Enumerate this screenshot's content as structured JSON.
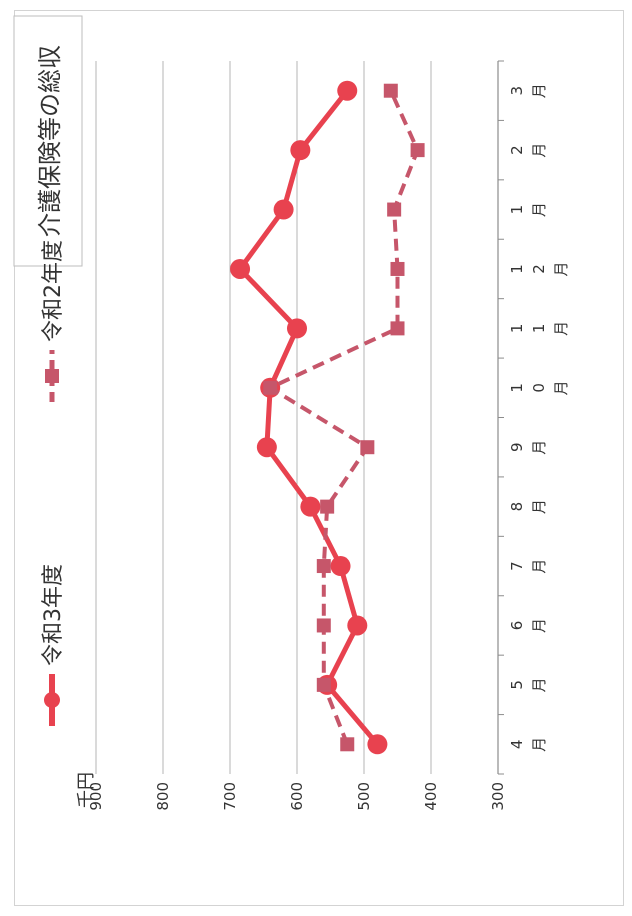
{
  "chart_data": {
    "type": "line",
    "title": "介護保険等の総収",
    "unit_label": "千円",
    "categories": [
      "4\n月",
      "5\n月",
      "6\n月",
      "7\n月",
      "8\n月",
      "9\n月",
      "1\n0\n月",
      "1\n1\n月",
      "1\n2\n月",
      "1\n月",
      "2\n月",
      "3\n月"
    ],
    "yticks": [
      "300",
      "400",
      "500",
      "600",
      "700",
      "800",
      "900"
    ],
    "ylim": [
      300,
      900
    ],
    "grid": true,
    "legend_position": "top",
    "series": [
      {
        "name": "令和3年度",
        "color": "#e8424f",
        "style": "solid",
        "marker": "circle",
        "values": [
          480,
          555,
          510,
          535,
          580,
          645,
          640,
          600,
          685,
          620,
          595,
          525
        ]
      },
      {
        "name": "令和2年度",
        "color": "#c6566a",
        "style": "dashed",
        "marker": "square",
        "values": [
          525,
          560,
          560,
          560,
          555,
          495,
          640,
          450,
          450,
          455,
          420,
          460
        ]
      }
    ]
  }
}
